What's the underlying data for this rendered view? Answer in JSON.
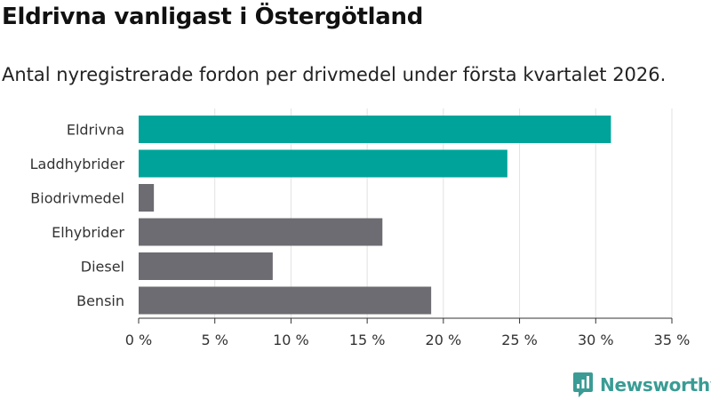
{
  "header": {
    "title": "Eldrivna vanligast i Östergötland",
    "subtitle": "Antal nyregistrerade fordon per drivmedel under första kvartalet 2026."
  },
  "chart_data": {
    "type": "bar",
    "orientation": "horizontal",
    "categories": [
      "Eldrivna",
      "Laddhybrider",
      "Biodrivmedel",
      "Elhybrider",
      "Diesel",
      "Bensin"
    ],
    "values": [
      31.0,
      24.2,
      1.0,
      16.0,
      8.8,
      19.2
    ],
    "colors": [
      "#00a39a",
      "#00a39a",
      "#6d6c72",
      "#6d6c72",
      "#6d6c72",
      "#6d6c72"
    ],
    "ticks": [
      0,
      5,
      10,
      15,
      20,
      25,
      30,
      35
    ],
    "tick_labels": [
      "0 %",
      "5 %",
      "10 %",
      "15 %",
      "20 %",
      "25 %",
      "30 %",
      "35 %"
    ],
    "xlim": [
      0,
      35
    ],
    "title": "Eldrivna vanligast i Östergötland",
    "xlabel": "",
    "ylabel": "",
    "grid": true
  },
  "branding": {
    "name": "Newsworthy",
    "icon": "newsworthy-logo-icon",
    "color": "#3a9c94"
  }
}
